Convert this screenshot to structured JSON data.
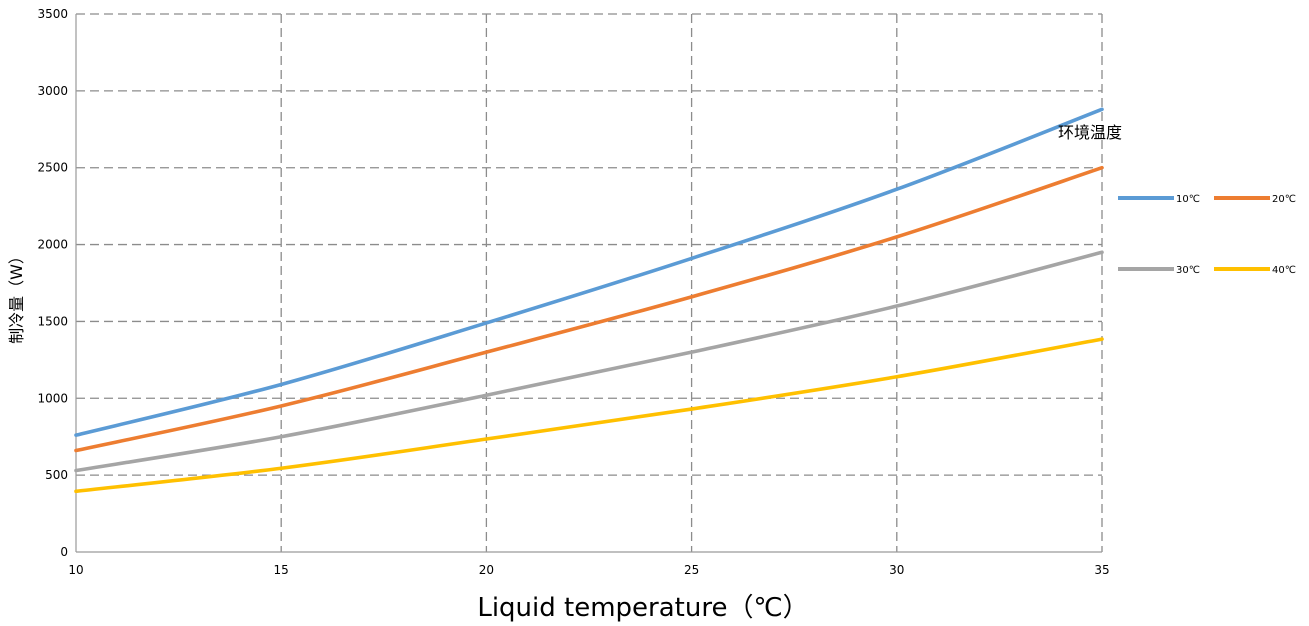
{
  "chart_data": {
    "type": "line",
    "xlabel": "Liquid temperature（℃）",
    "ylabel": "制冷量（W）",
    "legend_title": "环境温度",
    "legend_position": "right",
    "grid": true,
    "xlim": [
      10,
      35
    ],
    "ylim": [
      0,
      3500
    ],
    "xticks": [
      10,
      15,
      20,
      25,
      30,
      35
    ],
    "yticks": [
      0,
      500,
      1000,
      1500,
      2000,
      2500,
      3000,
      3500
    ],
    "x": [
      10,
      15,
      20,
      25,
      30,
      35
    ],
    "series": [
      {
        "name": "10℃",
        "color": "#5B9BD5",
        "values": [
          760,
          1090,
          1490,
          1910,
          2360,
          2880
        ]
      },
      {
        "name": "20℃",
        "color": "#ED7D31",
        "values": [
          660,
          950,
          1300,
          1660,
          2050,
          2500
        ]
      },
      {
        "name": "30℃",
        "color": "#A5A5A5",
        "values": [
          530,
          750,
          1020,
          1300,
          1600,
          1950
        ]
      },
      {
        "name": "40℃",
        "color": "#FFC000",
        "values": [
          395,
          545,
          735,
          930,
          1140,
          1385
        ]
      }
    ]
  }
}
